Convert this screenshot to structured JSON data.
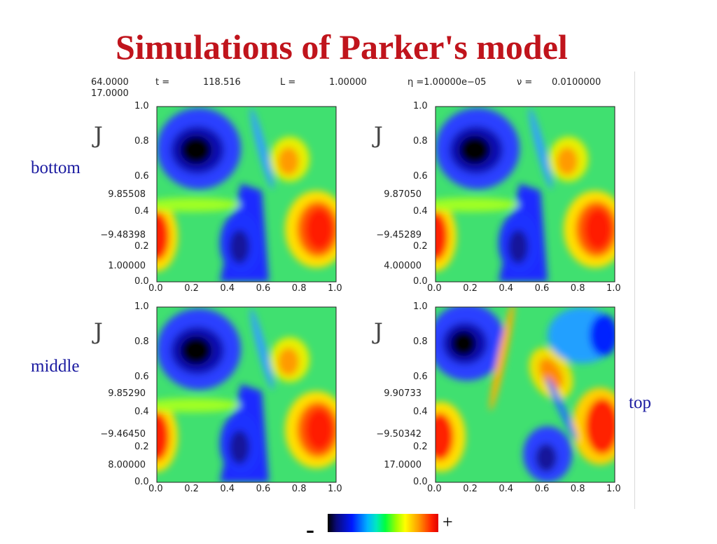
{
  "slide": {
    "title": "Simulations of Parker's model"
  },
  "header": {
    "col1_line1": "64.0000",
    "col1_line2": "17.0000",
    "t_label": "t =",
    "t_value": "118.516",
    "L_label": "L =",
    "L_value": "1.00000",
    "eta_label": "η =1.00000e−05",
    "nu_label": "ν =",
    "nu_value": "0.0100000"
  },
  "axis_ticks": [
    "0.0",
    "0.2",
    "0.4",
    "0.6",
    "0.8",
    "1.0"
  ],
  "panels": [
    {
      "id": "p1",
      "quantity": "J",
      "side_label": "bottom",
      "max": "9.85508",
      "min": "−9.48398",
      "z": "1.00000"
    },
    {
      "id": "p2",
      "quantity": "J",
      "side_label": "",
      "max": "9.87050",
      "min": "−9.45289",
      "z": "4.00000"
    },
    {
      "id": "p3",
      "quantity": "J",
      "side_label": "middle",
      "max": "9.85290",
      "min": "−9.46450",
      "z": "8.00000"
    },
    {
      "id": "p4",
      "quantity": "J",
      "side_label": "top",
      "max": "9.90733",
      "min": "−9.50342",
      "z": "17.0000"
    }
  ],
  "colorbar": {
    "minus_label": "-",
    "plus_label": "+"
  },
  "colors": {
    "title": "#c0141c",
    "labels": "#1a1aa0"
  }
}
